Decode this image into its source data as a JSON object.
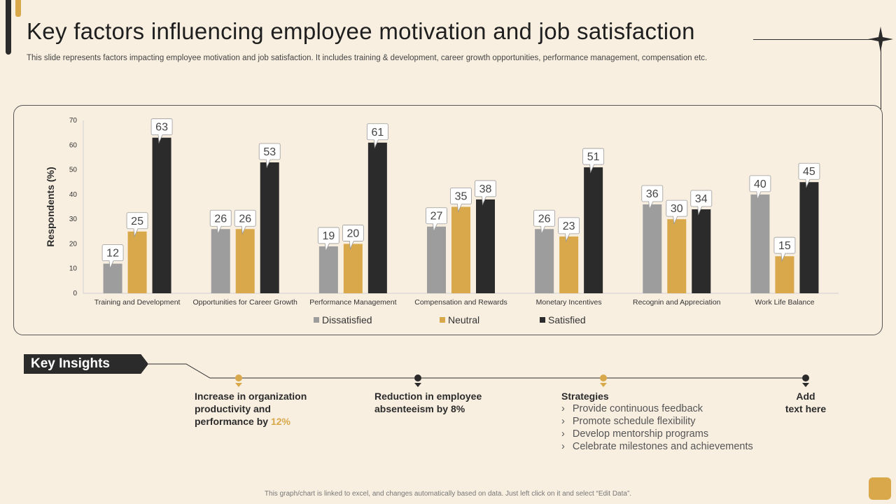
{
  "header": {
    "title": "Key factors influencing employee motivation and job satisfaction",
    "subtitle": "This slide represents factors impacting employee motivation and job satisfaction. It includes training & development, career growth opportunities, performance management, compensation etc."
  },
  "colors": {
    "dissatisfied": "#9d9d9d",
    "neutral": "#d9a84a",
    "satisfied": "#2b2b2b",
    "accent": "#d9a84a",
    "background": "#f8efe1"
  },
  "chart_data": {
    "type": "bar",
    "title": "",
    "xlabel": "",
    "ylabel": "Respondents (%)",
    "ylim": [
      0,
      70
    ],
    "yticks": [
      0,
      10,
      20,
      30,
      40,
      50,
      60,
      70
    ],
    "legend_position": "bottom",
    "categories": [
      "Training and  Development",
      "Opportunities for Career Growth",
      "Performance Management",
      "Compensation and Rewards",
      "Monetary Incentives",
      "Recognin and Appreciation",
      "Work Life Balance"
    ],
    "series": [
      {
        "name": "Dissatisfied",
        "values": [
          12,
          26,
          19,
          27,
          26,
          36,
          40
        ]
      },
      {
        "name": "Neutral",
        "values": [
          25,
          26,
          20,
          35,
          23,
          30,
          15
        ]
      },
      {
        "name": "Satisfied",
        "values": [
          63,
          53,
          61,
          38,
          51,
          34,
          45
        ]
      }
    ]
  },
  "insights": {
    "tag": "Key Insights",
    "item1_line1": "Increase in organization",
    "item1_line2": "productivity and",
    "item1_line3_prefix": "performance by ",
    "item1_highlight": "12%",
    "item2_line1": "Reduction in employee",
    "item2_line2": "absenteeism by 8%",
    "strategies_title": "Strategies",
    "strategies": [
      "Provide continuous feedback",
      "Promote schedule flexibility",
      "Develop mentorship programs",
      "Celebrate milestones and achievements"
    ],
    "item4_line1": "Add",
    "item4_line2": "text here"
  },
  "footer": {
    "note": "This graph/chart is linked to excel, and changes automatically based on data. Just left click on it and select “Edit Data”."
  }
}
